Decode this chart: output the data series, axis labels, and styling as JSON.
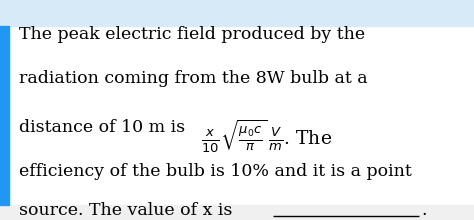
{
  "bg_color": "#ffffff",
  "top_bar_bg": "#d6eaf8",
  "top_bar_blue": "#2196f3",
  "bottom_bar_bg": "#f0f0f0",
  "text_color": "#000000",
  "font_size": 12.5,
  "fig_width": 4.74,
  "fig_height": 2.2,
  "dpi": 100,
  "lines": [
    "The peak electric field produced by the",
    "radiation coming from the 8W bulb at a",
    "efficiency of the bulb is 10% and it is a point",
    "source. The value of x is"
  ],
  "line3_pre": "distance of 10 m is ",
  "line3_formula": "$\\frac{x}{10}\\sqrt{\\frac{\\mu_0 c}{\\pi}}\\,\\frac{V}{m}$. The",
  "underline_text": "___________",
  "period": "."
}
